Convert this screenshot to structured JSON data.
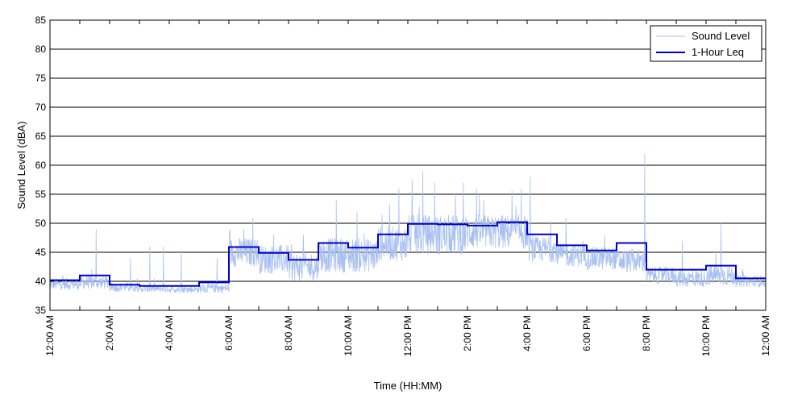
{
  "chart_data": {
    "type": "line",
    "title": "",
    "xlabel": "Time (HH:MM)",
    "ylabel": "Sound Level (dBA)",
    "ylim": [
      35,
      85
    ],
    "yticks": [
      35,
      40,
      45,
      50,
      55,
      60,
      65,
      70,
      75,
      80,
      85
    ],
    "xlim_hours": [
      0,
      24
    ],
    "xticks": [
      {
        "hour": 0,
        "label": "12:00 AM"
      },
      {
        "hour": 2,
        "label": "2:00 AM"
      },
      {
        "hour": 4,
        "label": "4:00 AM"
      },
      {
        "hour": 6,
        "label": "6:00 AM"
      },
      {
        "hour": 8,
        "label": "8:00 AM"
      },
      {
        "hour": 10,
        "label": "10:00 AM"
      },
      {
        "hour": 12,
        "label": "12:00 PM"
      },
      {
        "hour": 14,
        "label": "2:00 PM"
      },
      {
        "hour": 16,
        "label": "4:00 PM"
      },
      {
        "hour": 18,
        "label": "6:00 PM"
      },
      {
        "hour": 20,
        "label": "8:00 PM"
      },
      {
        "hour": 22,
        "label": "10:00 PM"
      },
      {
        "hour": 24,
        "label": "12:00 AM"
      }
    ],
    "grid": "horizontal",
    "legend": {
      "placement": "top-right",
      "entries": [
        "Sound Level",
        "1-Hour Leq"
      ]
    },
    "series": [
      {
        "name": "Sound Level",
        "color": "#a8c0f0",
        "style": "thin-line",
        "hourly_baseline": [
          39.5,
          39.8,
          39.0,
          38.7,
          38.6,
          38.8,
          45.0,
          43.8,
          42.5,
          44.5,
          44.5,
          46.5,
          48.0,
          48.0,
          48.5,
          48.5,
          45.5,
          44.5,
          44.0,
          43.5,
          41.0,
          40.5,
          41.0,
          40.0
        ],
        "hourly_spread": [
          1.0,
          1.2,
          0.8,
          0.6,
          0.6,
          0.8,
          2.5,
          2.5,
          2.5,
          3.0,
          3.0,
          3.0,
          3.5,
          3.5,
          3.0,
          3.0,
          2.2,
          2.0,
          2.0,
          2.0,
          1.5,
          1.5,
          1.8,
          1.0
        ],
        "peaks": [
          {
            "hour": 1.55,
            "value": 49
          },
          {
            "hour": 2.7,
            "value": 44
          },
          {
            "hour": 3.35,
            "value": 46
          },
          {
            "hour": 3.8,
            "value": 46
          },
          {
            "hour": 4.4,
            "value": 45
          },
          {
            "hour": 5.6,
            "value": 44
          },
          {
            "hour": 6.5,
            "value": 49
          },
          {
            "hour": 6.8,
            "value": 51
          },
          {
            "hour": 7.5,
            "value": 48
          },
          {
            "hour": 8.5,
            "value": 48
          },
          {
            "hour": 9.6,
            "value": 54
          },
          {
            "hour": 10.3,
            "value": 52
          },
          {
            "hour": 11.7,
            "value": 56
          },
          {
            "hour": 12.5,
            "value": 59
          },
          {
            "hour": 12.9,
            "value": 57
          },
          {
            "hour": 13.6,
            "value": 55
          },
          {
            "hour": 14.3,
            "value": 56
          },
          {
            "hour": 15.8,
            "value": 56
          },
          {
            "hour": 16.1,
            "value": 58
          },
          {
            "hour": 17.3,
            "value": 51
          },
          {
            "hour": 18.6,
            "value": 48
          },
          {
            "hour": 19.95,
            "value": 62
          },
          {
            "hour": 21.2,
            "value": 47
          },
          {
            "hour": 22.5,
            "value": 50
          }
        ]
      },
      {
        "name": "1-Hour Leq",
        "color": "#0000cc",
        "style": "step",
        "hours": [
          0,
          1,
          2,
          3,
          4,
          5,
          6,
          7,
          8,
          9,
          10,
          11,
          12,
          13,
          14,
          15,
          16,
          17,
          18,
          19,
          20,
          21,
          22,
          23
        ],
        "values": [
          40.2,
          41.0,
          39.4,
          39.2,
          39.2,
          39.8,
          45.9,
          44.9,
          43.7,
          46.6,
          45.8,
          48.1,
          49.9,
          49.8,
          49.6,
          50.2,
          48.1,
          46.2,
          45.3,
          46.6,
          42.0,
          42.0,
          42.7,
          40.5
        ]
      }
    ]
  }
}
